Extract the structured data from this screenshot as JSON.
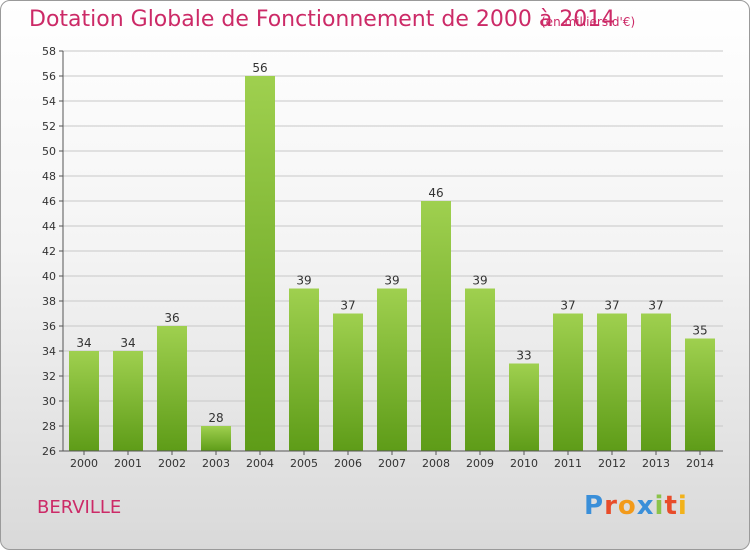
{
  "header": {
    "title": "Dotation Globale de Fonctionnement de 2000 à 2014",
    "subtitle": "(en milliers d'€)"
  },
  "footer": {
    "commune": "BERVILLE",
    "logo": "Proxiti",
    "logo_colors": [
      "#3a8fd9",
      "#e84c2a",
      "#f29a1a",
      "#3a8fd9",
      "#8bc34a",
      "#e84c2a",
      "#f2b21a"
    ]
  },
  "colors": {
    "bar_top": "#9fd04f",
    "bar_bottom": "#5e9c18",
    "grid": "#c8c8c8",
    "title": "#cc2a67"
  },
  "chart_data": {
    "type": "bar",
    "title": "Dotation Globale de Fonctionnement de 2000 à 2014",
    "subtitle": "(en milliers d'€)",
    "categories": [
      "2000",
      "2001",
      "2002",
      "2003",
      "2004",
      "2005",
      "2006",
      "2007",
      "2008",
      "2009",
      "2010",
      "2011",
      "2012",
      "2013",
      "2014"
    ],
    "values": [
      34,
      34,
      36,
      28,
      56,
      39,
      37,
      39,
      46,
      39,
      33,
      37,
      37,
      37,
      35
    ],
    "ylim": [
      26,
      58
    ],
    "ytick_step": 2,
    "grid": true,
    "data_labels": true
  }
}
